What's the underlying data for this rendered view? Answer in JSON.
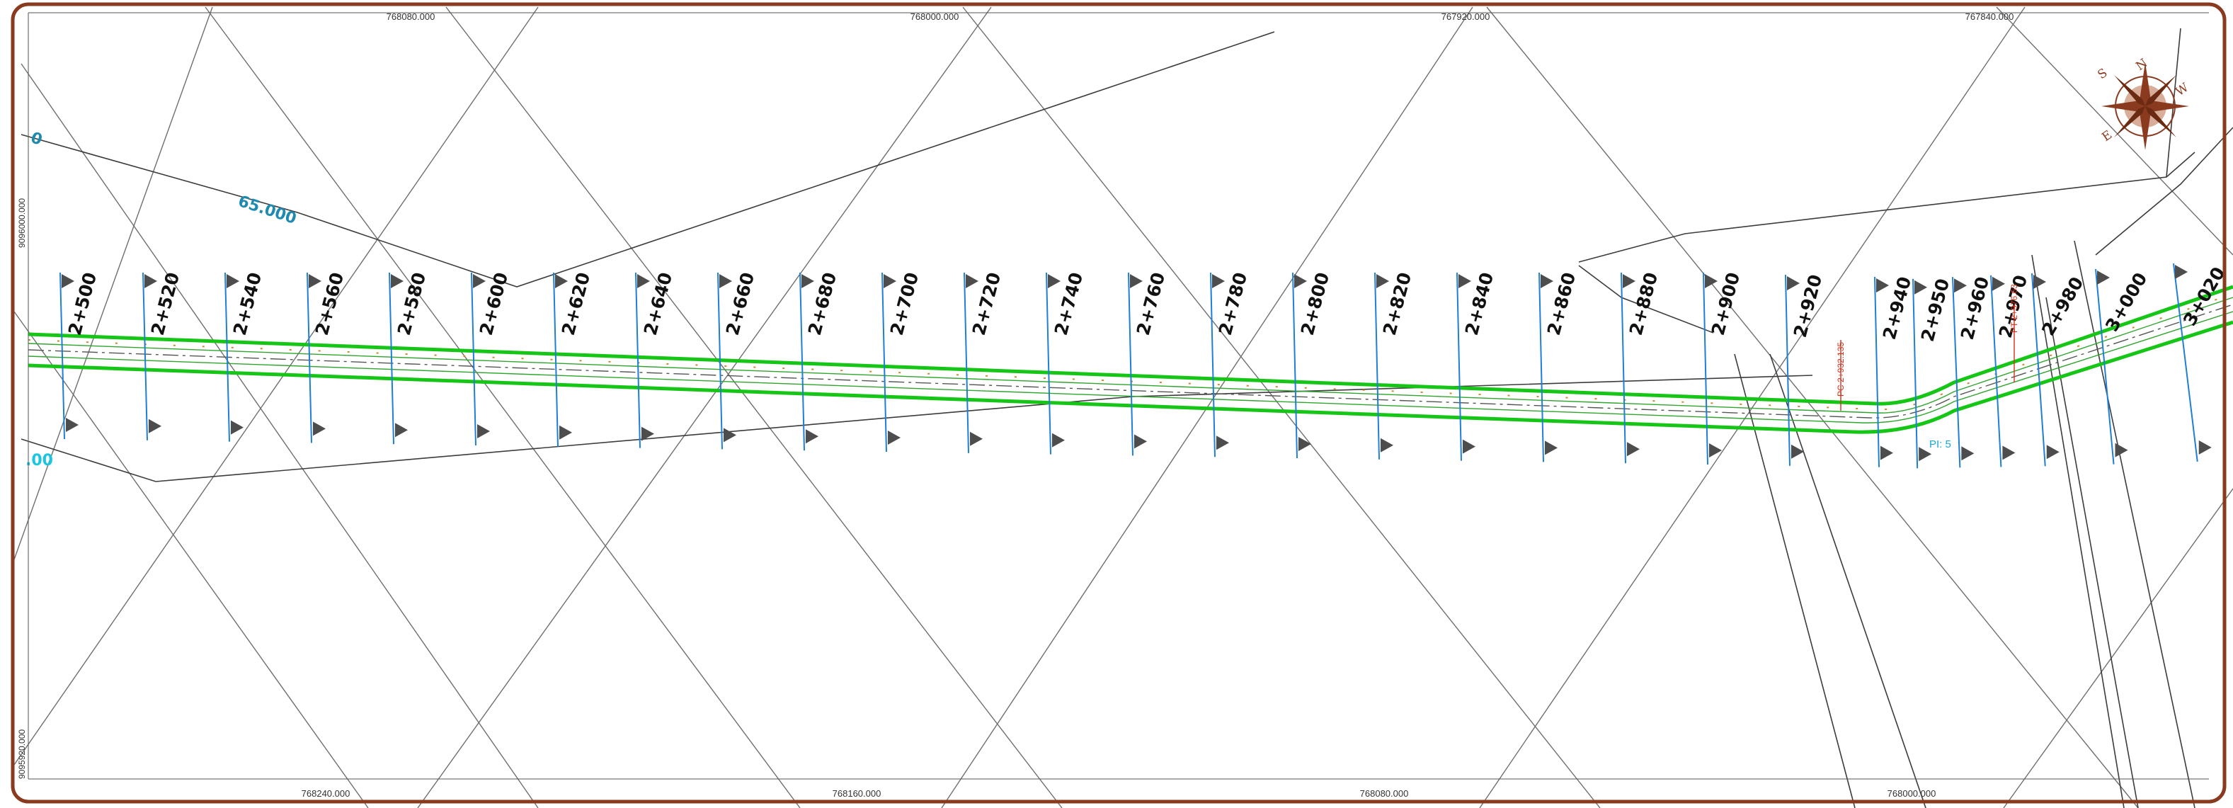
{
  "coordinates": {
    "top": [
      "768080.000",
      "768000.000",
      "767920.000",
      "767840.000"
    ],
    "bottom": [
      "768240.000",
      "768160.000",
      "768080.000",
      "768000.000"
    ],
    "left": [
      "9096000.000",
      "9095920.000"
    ]
  },
  "contours": [
    "65.000",
    "0",
    ".00"
  ],
  "stations": [
    "2+500",
    "2+520",
    "2+540",
    "2+560",
    "2+580",
    "2+600",
    "2+620",
    "2+640",
    "2+660",
    "2+680",
    "2+700",
    "2+720",
    "2+740",
    "2+760",
    "2+780",
    "2+800",
    "2+820",
    "2+840",
    "2+860",
    "2+880",
    "2+900",
    "2+920",
    "2+940",
    "2+950",
    "2+960",
    "2+970",
    "2+980",
    "3+000",
    "3+020"
  ],
  "annotations": {
    "pc": "PC 2+932.135",
    "pc2": "PT 2+976.63",
    "pi": "PI: 5"
  },
  "compass": {
    "letters": [
      "N",
      "S",
      "E",
      "W"
    ]
  },
  "colors": {
    "frame": "#8a3a1e",
    "road": "#16c616",
    "sections": "#1f7fd6",
    "contour": "#1f8ab0"
  }
}
